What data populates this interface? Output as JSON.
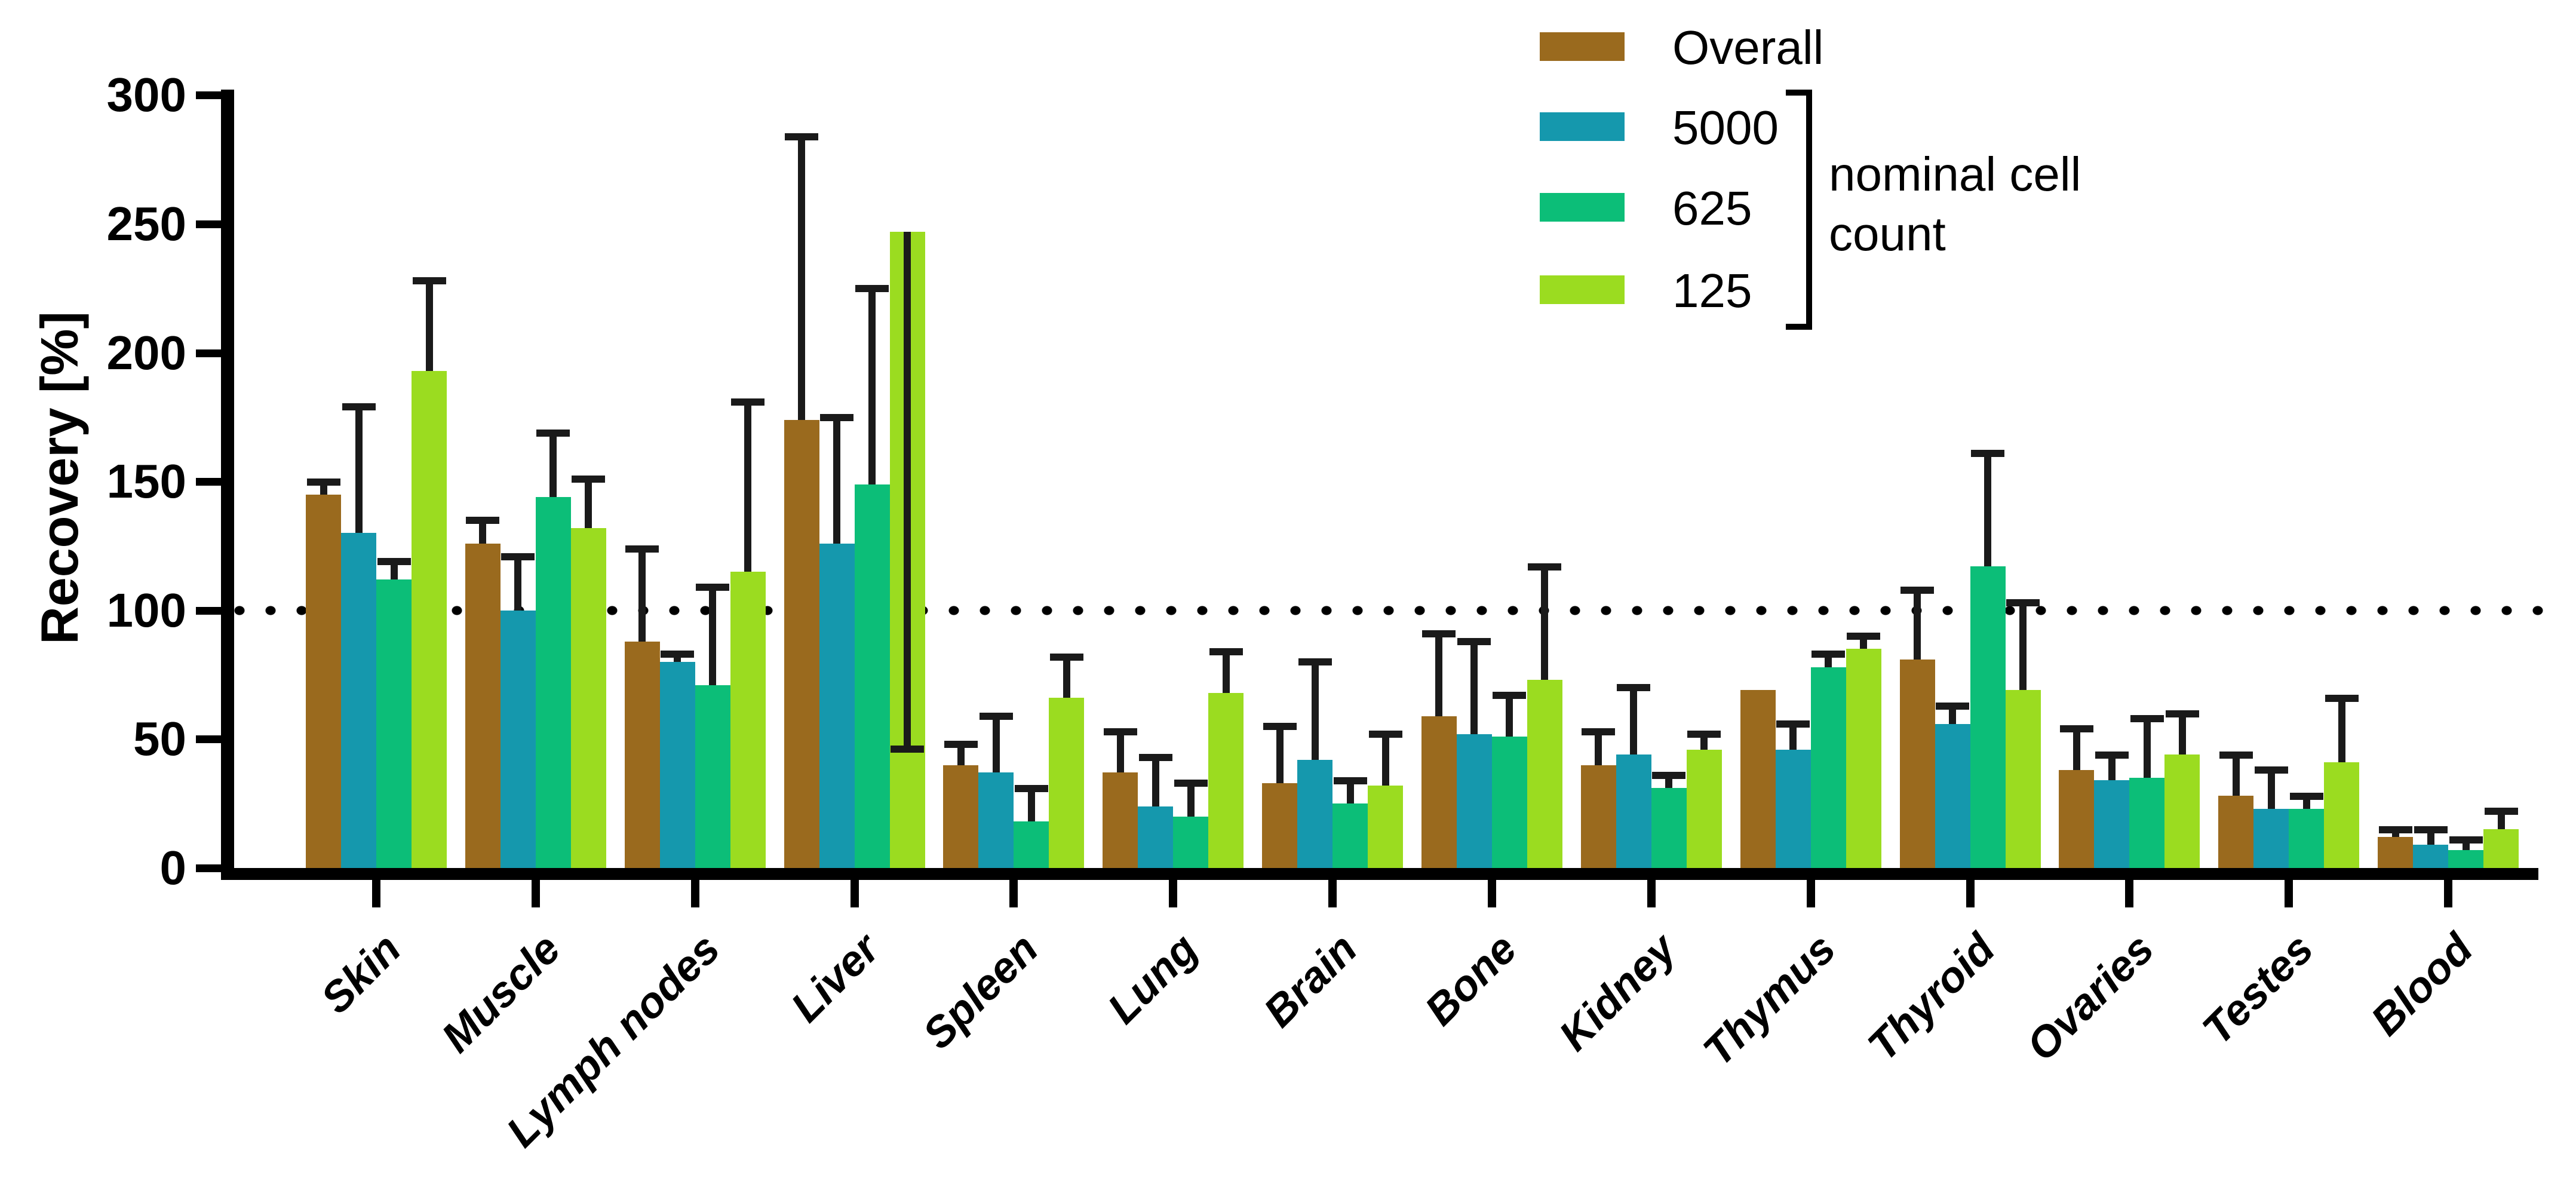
{
  "chart_data": {
    "type": "bar",
    "title": "",
    "ylabel": "Recovery [%]",
    "ylim": [
      0,
      300
    ],
    "yticks": [
      0,
      50,
      100,
      150,
      200,
      250,
      300
    ],
    "reference_line": 100,
    "grid": false,
    "legend_position": "top-right",
    "categories": [
      "Skin",
      "Muscle",
      "Lymph nodes",
      "Liver",
      "Spleen",
      "Lung",
      "Brain",
      "Bone",
      "Kidney",
      "Thymus",
      "Thyroid",
      "Ovaries",
      "Testes",
      "Blood"
    ],
    "series": [
      {
        "name": "Overall",
        "color": "#9A6A1E",
        "values": [
          145,
          126,
          88,
          174,
          40,
          37,
          33,
          59,
          40,
          69,
          81,
          38,
          28,
          12
        ],
        "err_up": [
          4,
          8,
          35,
          109,
          7,
          15,
          21,
          31,
          12,
          null,
          26,
          15,
          15,
          2
        ],
        "err_down": [
          null,
          null,
          null,
          null,
          null,
          null,
          null,
          null,
          null,
          null,
          null,
          null,
          null,
          null
        ]
      },
      {
        "name": "5000",
        "color": "#1598AD",
        "values": [
          130,
          100,
          80,
          126,
          37,
          24,
          42,
          52,
          44,
          46,
          56,
          34,
          23,
          9
        ],
        "err_up": [
          48,
          20,
          2,
          48,
          21,
          18,
          37,
          35,
          25,
          9,
          6,
          9,
          14,
          5
        ],
        "err_down": [
          null,
          null,
          null,
          null,
          null,
          null,
          null,
          null,
          null,
          null,
          null,
          null,
          null,
          null
        ]
      },
      {
        "name": "625",
        "color": "#0CBE78",
        "values": [
          112,
          144,
          71,
          149,
          18,
          20,
          25,
          51,
          31,
          78,
          117,
          35,
          23,
          7
        ],
        "err_up": [
          6,
          24,
          37,
          75,
          12,
          12,
          8,
          15,
          4,
          4,
          43,
          22,
          4,
          3
        ],
        "err_down": [
          null,
          null,
          null,
          null,
          null,
          null,
          null,
          null,
          null,
          null,
          null,
          null,
          null,
          null
        ]
      },
      {
        "name": "125",
        "color": "#9BDC20",
        "values": [
          193,
          132,
          115,
          247,
          66,
          68,
          32,
          73,
          46,
          85,
          69,
          44,
          41,
          15
        ],
        "err_up": [
          34,
          18,
          65,
          null,
          15,
          15,
          19,
          43,
          5,
          4,
          33,
          15,
          24,
          6
        ],
        "err_down": [
          null,
          null,
          null,
          200,
          null,
          null,
          null,
          null,
          null,
          null,
          null,
          null,
          null,
          null
        ]
      }
    ],
    "legend": {
      "items": [
        "Overall",
        "5000",
        "625",
        "125"
      ],
      "bracket_label": "nominal cell count"
    }
  }
}
